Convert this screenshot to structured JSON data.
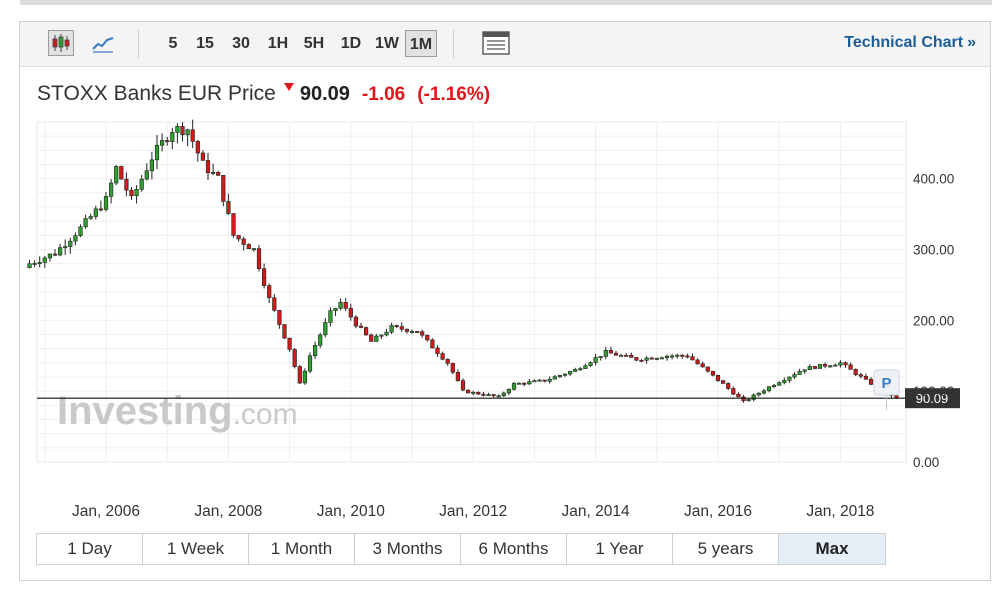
{
  "toolbar": {
    "intervals": [
      "5",
      "15",
      "30",
      "1H",
      "5H",
      "1D",
      "1W",
      "1M"
    ],
    "active_interval": "1M",
    "icons": [
      "candlestick-icon",
      "line-chart-icon",
      "table-icon"
    ],
    "tech_link": "Technical Chart",
    "tech_link_arrow": "»"
  },
  "header": {
    "name": "STOXX Banks EUR Price",
    "price": "90.09",
    "change": "-1.06",
    "change_pct": "(-1.16%)"
  },
  "watermark": {
    "brand": "Investing",
    "suffix": ".com"
  },
  "colors": {
    "up": "#2f9e2f",
    "down": "#d11a1a",
    "negative": "#e0161a",
    "link": "#1e5e98",
    "last_price_bg": "#333333"
  },
  "chart_data": {
    "type": "candlestick",
    "interval": "1M",
    "ylim": [
      0,
      480
    ],
    "yticks": [
      "0.00",
      "100.00",
      "200.00",
      "300.00",
      "400.00"
    ],
    "ytick_values": [
      0,
      100,
      200,
      300,
      400
    ],
    "xticks": [
      "Jan, 2006",
      "Jan, 2008",
      "Jan, 2010",
      "Jan, 2012",
      "Jan, 2014",
      "Jan, 2016",
      "Jan, 2018"
    ],
    "xtick_years": [
      2006,
      2008,
      2010,
      2012,
      2014,
      2016,
      2018
    ],
    "x_range": [
      "2004-10",
      "2018-12"
    ],
    "last_price": 90.09,
    "last_price_label": "90.09",
    "marker_label": "P",
    "grid": true,
    "close_anchors": [
      [
        "2004-10",
        280
      ],
      [
        "2005-03",
        295
      ],
      [
        "2005-08",
        330
      ],
      [
        "2006-01",
        370
      ],
      [
        "2006-03",
        415
      ],
      [
        "2006-06",
        370
      ],
      [
        "2006-10",
        430
      ],
      [
        "2007-02",
        470
      ],
      [
        "2007-05",
        470
      ],
      [
        "2007-08",
        420
      ],
      [
        "2007-11",
        400
      ],
      [
        "2008-02",
        320
      ],
      [
        "2008-06",
        300
      ],
      [
        "2008-09",
        230
      ],
      [
        "2009-01",
        160
      ],
      [
        "2009-03",
        110
      ],
      [
        "2009-05",
        150
      ],
      [
        "2009-09",
        210
      ],
      [
        "2009-11",
        225
      ],
      [
        "2010-02",
        195
      ],
      [
        "2010-05",
        170
      ],
      [
        "2010-09",
        190
      ],
      [
        "2011-02",
        185
      ],
      [
        "2011-08",
        140
      ],
      [
        "2011-11",
        100
      ],
      [
        "2012-06",
        92
      ],
      [
        "2012-09",
        110
      ],
      [
        "2013-03",
        115
      ],
      [
        "2013-09",
        130
      ],
      [
        "2014-03",
        155
      ],
      [
        "2014-09",
        145
      ],
      [
        "2015-03",
        150
      ],
      [
        "2015-07",
        150
      ],
      [
        "2016-02",
        110
      ],
      [
        "2016-06",
        85
      ],
      [
        "2016-12",
        110
      ],
      [
        "2017-06",
        132
      ],
      [
        "2018-01",
        140
      ],
      [
        "2018-06",
        115
      ],
      [
        "2018-12",
        90.09
      ]
    ]
  },
  "ranges": [
    "1 Day",
    "1 Week",
    "1 Month",
    "3 Months",
    "6 Months",
    "1 Year",
    "5 years",
    "Max"
  ],
  "active_range": "Max"
}
